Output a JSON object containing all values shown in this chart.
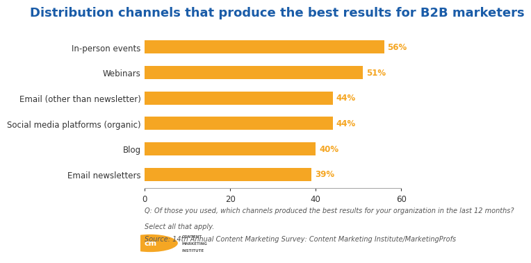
{
  "title": "Distribution channels that produce the best results for B2B marketers",
  "categories": [
    "Email newsletters",
    "Blog",
    "Social media platforms (organic)",
    "Email (other than newsletter)",
    "Webinars",
    "In-person events"
  ],
  "values": [
    39,
    40,
    44,
    44,
    51,
    56
  ],
  "bar_color": "#F5A623",
  "label_color": "#F5A623",
  "title_color": "#1A5CA8",
  "text_color": "#555555",
  "dark_text_color": "#333333",
  "background_color": "#FFFFFF",
  "xlim": [
    0,
    60
  ],
  "xticks": [
    0,
    20,
    40,
    60
  ],
  "footnote_line1": "Q: Of those you used, which channels produced the best results for your organization in the last 12 months?",
  "footnote_line2": "Select all that apply.",
  "source_line": "Source: 14th Annual Content Marketing Survey: Content Marketing Institute/MarketingProfs",
  "title_fontsize": 13,
  "label_fontsize": 8.5,
  "value_fontsize": 8.5,
  "tick_fontsize": 8.5,
  "footnote_fontsize": 7,
  "source_fontsize": 7,
  "bar_height": 0.52
}
